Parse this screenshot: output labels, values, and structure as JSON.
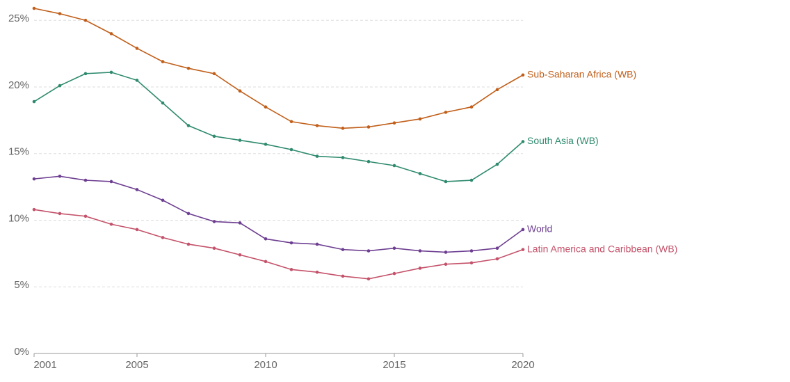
{
  "chart_data": {
    "type": "line",
    "x": [
      2001,
      2002,
      2003,
      2004,
      2005,
      2006,
      2007,
      2008,
      2009,
      2010,
      2011,
      2012,
      2013,
      2014,
      2015,
      2016,
      2017,
      2018,
      2019,
      2020
    ],
    "series": [
      {
        "name": "Sub-Saharan Africa (WB)",
        "color": "#c15f1a",
        "values": [
          25.9,
          25.5,
          25.0,
          24.0,
          22.9,
          21.9,
          21.4,
          21.0,
          19.7,
          18.5,
          17.4,
          17.1,
          16.9,
          17.0,
          17.3,
          17.6,
          18.1,
          18.5,
          19.8,
          20.9
        ]
      },
      {
        "name": "South Asia (WB)",
        "color": "#2e8a6e",
        "values": [
          18.9,
          20.1,
          21.0,
          21.1,
          20.5,
          18.8,
          17.1,
          16.3,
          16.0,
          15.7,
          15.3,
          14.8,
          14.7,
          14.4,
          14.1,
          13.5,
          12.9,
          13.0,
          14.2,
          15.9
        ]
      },
      {
        "name": "World",
        "color": "#6d3e91",
        "values": [
          13.1,
          13.3,
          13.0,
          12.9,
          12.3,
          11.5,
          10.5,
          9.9,
          9.8,
          8.6,
          8.3,
          8.2,
          7.8,
          7.7,
          7.9,
          7.7,
          7.6,
          7.7,
          7.9,
          9.3
        ]
      },
      {
        "name": "Latin America and Caribbean (WB)",
        "color": "#c4526a",
        "values": [
          10.8,
          10.5,
          10.3,
          9.7,
          9.3,
          8.7,
          8.2,
          7.9,
          7.4,
          6.9,
          6.3,
          6.1,
          5.8,
          5.6,
          6.0,
          6.4,
          6.7,
          6.8,
          7.1,
          7.8
        ]
      }
    ],
    "xlim": [
      2001,
      2020
    ],
    "xticks": [
      2001,
      2005,
      2010,
      2015,
      2020
    ],
    "ylim": [
      0,
      25.9
    ],
    "yticks": [
      {
        "value": 0,
        "label": "0%"
      },
      {
        "value": 5,
        "label": "5%"
      },
      {
        "value": 10,
        "label": "10%"
      },
      {
        "value": 15,
        "label": "15%"
      },
      {
        "value": 20,
        "label": "20%"
      },
      {
        "value": 25,
        "label": "25%"
      }
    ],
    "grid": true
  }
}
